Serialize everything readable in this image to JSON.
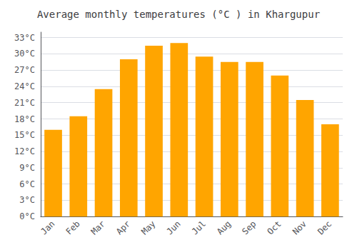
{
  "chart_data": {
    "type": "bar",
    "title": "Average monthly temperatures (°C ) in Khargupur",
    "categories": [
      "Jan",
      "Feb",
      "Mar",
      "Apr",
      "May",
      "Jun",
      "Jul",
      "Aug",
      "Sep",
      "Oct",
      "Nov",
      "Dec"
    ],
    "values": [
      16.0,
      18.5,
      23.5,
      29.0,
      31.5,
      32.0,
      29.5,
      28.5,
      28.5,
      26.0,
      21.5,
      17.0
    ],
    "color": "#FFA500",
    "ylim": [
      0,
      34
    ],
    "yticks": [
      {
        "value": 0,
        "label": "0°C"
      },
      {
        "value": 3,
        "label": "3°C"
      },
      {
        "value": 6,
        "label": "6°C"
      },
      {
        "value": 9,
        "label": "9°C"
      },
      {
        "value": 12,
        "label": "12°C"
      },
      {
        "value": 15,
        "label": "15°C"
      },
      {
        "value": 18,
        "label": "18°C"
      },
      {
        "value": 21,
        "label": "21°C"
      },
      {
        "value": 24,
        "label": "24°C"
      },
      {
        "value": 27,
        "label": "27°C"
      },
      {
        "value": 30,
        "label": "30°C"
      },
      {
        "value": 33,
        "label": "33°C"
      }
    ],
    "grid": true
  }
}
